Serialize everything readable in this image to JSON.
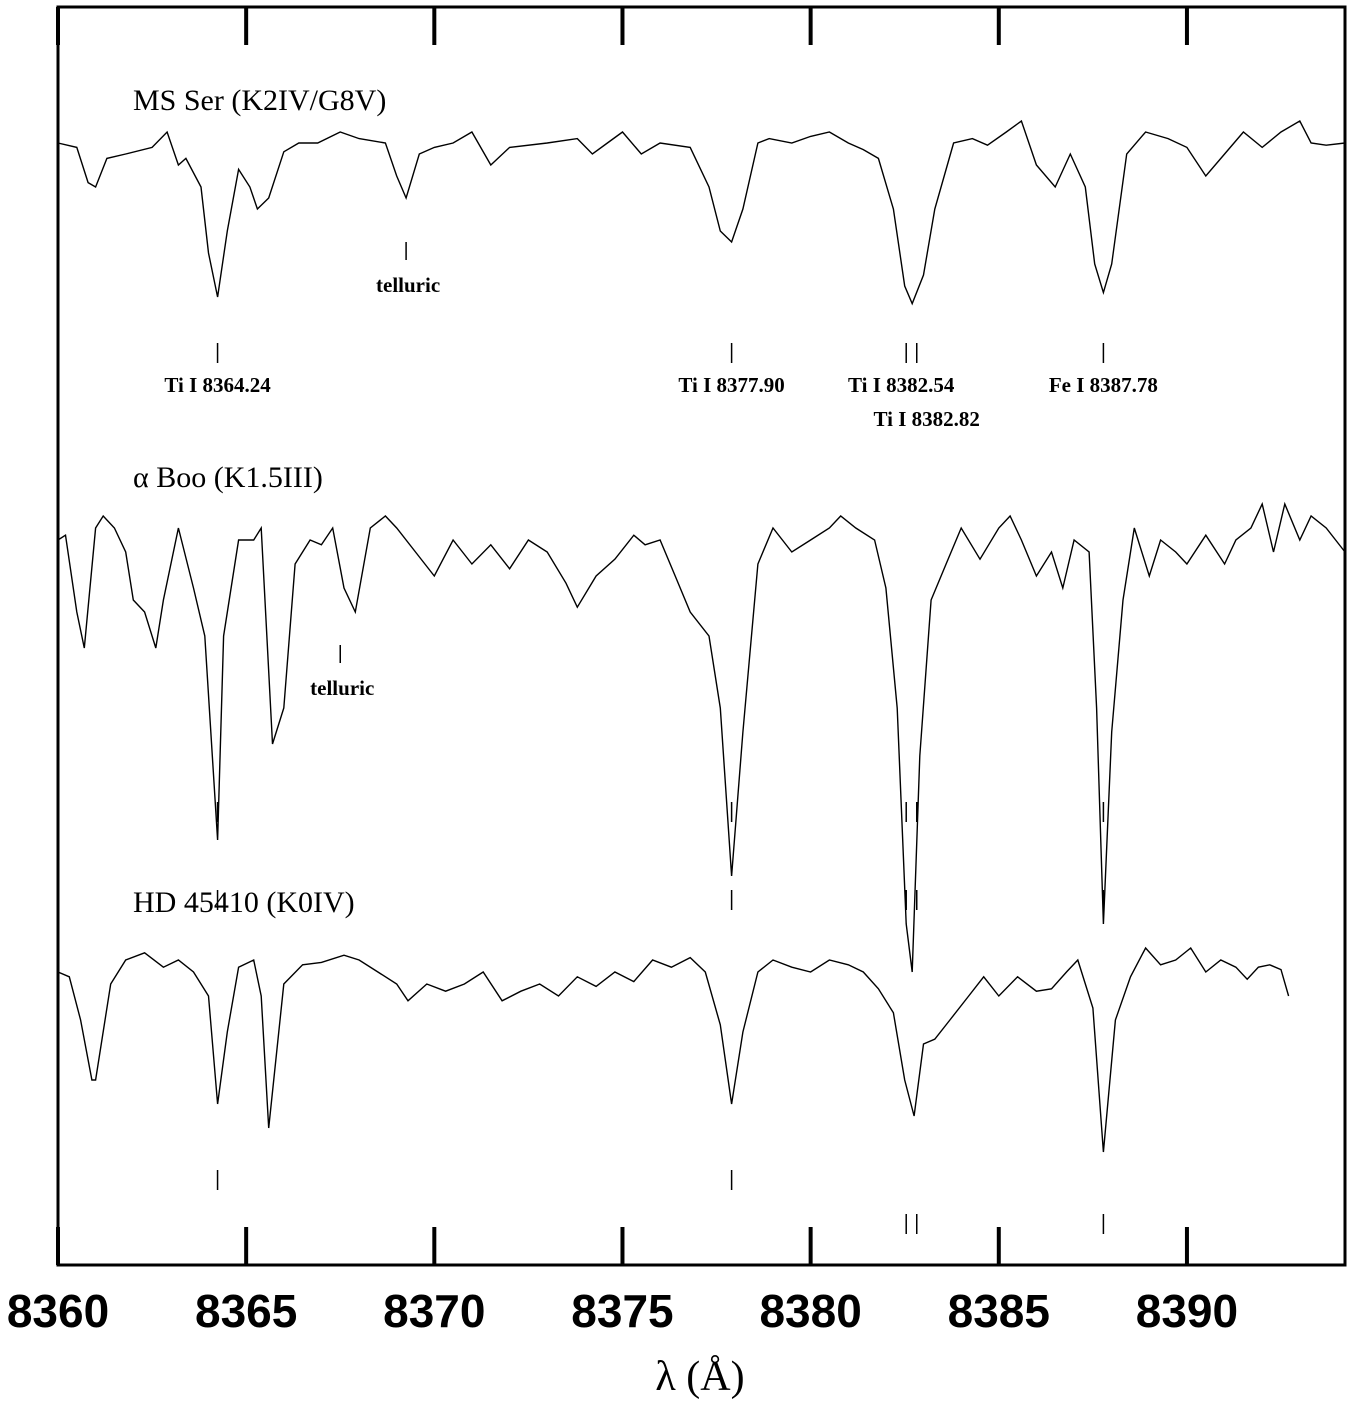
{
  "chart_data": {
    "type": "line",
    "title": "",
    "xlabel": "λ (Å)",
    "ylabel": "",
    "xlim": [
      8360,
      8394.2
    ],
    "xticks": [
      "8360",
      "8365",
      "8370",
      "8375",
      "8380",
      "8385",
      "8390"
    ],
    "grid": false,
    "series": [
      {
        "name": "MS Ser (K2IV/G8V)",
        "x": [
          8360,
          8360.5,
          8360.8,
          8361.0,
          8361.3,
          8361.8,
          8362.5,
          8362.9,
          8363.2,
          8363.4,
          8363.8,
          8364.0,
          8364.24,
          8364.5,
          8364.8,
          8365.1,
          8365.3,
          8365.6,
          8366.0,
          8366.4,
          8366.9,
          8367.5,
          8368.0,
          8368.7,
          8369.0,
          8369.25,
          8369.6,
          8370.0,
          8370.5,
          8371.0,
          8371.5,
          8372.0,
          8373.0,
          8373.8,
          8374.2,
          8374.6,
          8375.0,
          8375.5,
          8376.0,
          8376.8,
          8377.3,
          8377.6,
          8377.9,
          8378.2,
          8378.6,
          8378.9,
          8379.5,
          8380.0,
          8380.5,
          8381.0,
          8381.4,
          8381.8,
          8382.2,
          8382.5,
          8382.7,
          8383.0,
          8383.3,
          8383.8,
          8384.3,
          8384.7,
          8385.2,
          8385.6,
          8386.0,
          8386.5,
          8386.9,
          8387.3,
          8387.55,
          8387.78,
          8388.0,
          8388.4,
          8388.9,
          8389.5,
          8390.0,
          8390.5,
          8391.0,
          8391.5,
          8392.0,
          8392.5,
          8393.0,
          8393.3,
          8393.7,
          8394.2
        ],
        "y": [
          1.0,
          0.98,
          0.82,
          0.8,
          0.93,
          0.95,
          0.98,
          1.05,
          0.9,
          0.93,
          0.8,
          0.5,
          0.3,
          0.6,
          0.88,
          0.8,
          0.7,
          0.75,
          0.96,
          1.0,
          1.0,
          1.05,
          1.02,
          1.0,
          0.85,
          0.75,
          0.95,
          0.98,
          1.0,
          1.05,
          0.9,
          0.98,
          1.0,
          1.02,
          0.95,
          1.0,
          1.05,
          0.95,
          1.0,
          0.98,
          0.8,
          0.6,
          0.55,
          0.7,
          1.0,
          1.02,
          1.0,
          1.03,
          1.05,
          1.0,
          0.97,
          0.93,
          0.7,
          0.35,
          0.27,
          0.4,
          0.7,
          1.0,
          1.02,
          0.99,
          1.05,
          1.1,
          0.9,
          0.8,
          0.95,
          0.8,
          0.45,
          0.32,
          0.45,
          0.95,
          1.05,
          1.02,
          0.98,
          0.85,
          0.95,
          1.05,
          0.98,
          1.05,
          1.1,
          1.0,
          0.99,
          1.0
        ]
      },
      {
        "name": "α Boo (K1.5III)",
        "x": [
          8360,
          8360.2,
          8360.5,
          8360.7,
          8361.0,
          8361.2,
          8361.5,
          8361.8,
          8362.0,
          8362.3,
          8362.6,
          8362.8,
          8363.2,
          8363.6,
          8363.9,
          8364.24,
          8364.4,
          8364.8,
          8365.2,
          8365.4,
          8365.7,
          8366.0,
          8366.3,
          8366.7,
          8367.0,
          8367.3,
          8367.6,
          8367.9,
          8368.3,
          8368.7,
          8369.0,
          8369.5,
          8370.0,
          8370.5,
          8371.0,
          8371.5,
          8372.0,
          8372.5,
          8373.0,
          8373.5,
          8373.8,
          8374.3,
          8374.8,
          8375.3,
          8375.6,
          8376.0,
          8376.4,
          8376.8,
          8377.3,
          8377.6,
          8377.9,
          8378.2,
          8378.6,
          8379.0,
          8379.5,
          8380.0,
          8380.5,
          8380.8,
          8381.2,
          8381.7,
          8382.0,
          8382.3,
          8382.54,
          8382.7,
          8382.9,
          8383.2,
          8383.6,
          8384.0,
          8384.5,
          8385.0,
          8385.3,
          8385.6,
          8386.0,
          8386.4,
          8386.7,
          8387.0,
          8387.4,
          8387.6,
          8387.78,
          8388.0,
          8388.3,
          8388.6,
          8389.0,
          8389.3,
          8389.7,
          8390.0,
          8390.5,
          8391.0,
          8391.3,
          8391.7,
          8392.0,
          8392.3,
          8392.6,
          8393.0,
          8393.3,
          8393.7,
          8394.2
        ],
        "y": [
          1.0,
          1.02,
          0.7,
          0.55,
          1.05,
          1.1,
          1.05,
          0.95,
          0.75,
          0.7,
          0.55,
          0.75,
          1.05,
          0.8,
          0.6,
          -0.25,
          0.6,
          1.0,
          1.0,
          1.05,
          0.15,
          0.3,
          0.9,
          1.0,
          0.98,
          1.05,
          0.8,
          0.7,
          1.05,
          1.1,
          1.05,
          0.95,
          0.85,
          1.0,
          0.9,
          0.98,
          0.88,
          1.0,
          0.95,
          0.82,
          0.72,
          0.85,
          0.92,
          1.02,
          0.98,
          1.0,
          0.85,
          0.7,
          0.6,
          0.3,
          -0.4,
          0.2,
          0.9,
          1.05,
          0.95,
          1.0,
          1.05,
          1.1,
          1.05,
          1.0,
          0.8,
          0.3,
          -0.6,
          -0.8,
          0.1,
          0.75,
          0.9,
          1.05,
          0.92,
          1.05,
          1.1,
          1.0,
          0.85,
          0.95,
          0.8,
          1.0,
          0.95,
          0.3,
          -0.6,
          0.2,
          0.75,
          1.05,
          0.85,
          1.0,
          0.95,
          0.9,
          1.02,
          0.9,
          1.0,
          1.05,
          1.15,
          0.95,
          1.15,
          1.0,
          1.1,
          1.05,
          0.95
        ]
      },
      {
        "name": "HD 45410 (K0IV)",
        "x": [
          8360,
          8360.3,
          8360.6,
          8360.9,
          8361.0,
          8361.4,
          8361.8,
          8362.3,
          8362.8,
          8363.2,
          8363.6,
          8364.0,
          8364.24,
          8364.5,
          8364.8,
          8365.2,
          8365.4,
          8365.6,
          8366.0,
          8366.5,
          8367.0,
          8367.6,
          8368.0,
          8368.5,
          8369.0,
          8369.3,
          8369.8,
          8370.3,
          8370.8,
          8371.3,
          8371.8,
          8372.3,
          8372.8,
          8373.3,
          8373.8,
          8374.3,
          8374.8,
          8375.3,
          8375.8,
          8376.3,
          8376.8,
          8377.2,
          8377.6,
          8377.9,
          8378.2,
          8378.6,
          8379.0,
          8379.5,
          8380.0,
          8380.5,
          8381.0,
          8381.4,
          8381.8,
          8382.2,
          8382.5,
          8382.75,
          8383.0,
          8383.3,
          8383.7,
          8384.2,
          8384.6,
          8385.0,
          8385.5,
          8386.0,
          8386.4,
          8386.8,
          8387.1,
          8387.5,
          8387.78,
          8388.1,
          8388.5,
          8388.9,
          8389.3,
          8389.7,
          8390.1,
          8390.5,
          8390.9,
          8391.3,
          8391.6,
          8391.9,
          8392.2,
          8392.5,
          8392.7
        ],
        "y": [
          1.0,
          0.98,
          0.8,
          0.55,
          0.55,
          0.95,
          1.05,
          1.08,
          1.02,
          1.05,
          1.0,
          0.9,
          0.45,
          0.75,
          1.02,
          1.05,
          0.9,
          0.35,
          0.95,
          1.03,
          1.04,
          1.07,
          1.05,
          1.0,
          0.95,
          0.88,
          0.95,
          0.92,
          0.95,
          1.0,
          0.88,
          0.92,
          0.95,
          0.9,
          0.98,
          0.94,
          1.0,
          0.96,
          1.05,
          1.02,
          1.06,
          1.0,
          0.78,
          0.45,
          0.75,
          1.0,
          1.05,
          1.02,
          1.0,
          1.05,
          1.03,
          1.0,
          0.93,
          0.83,
          0.55,
          0.4,
          0.7,
          0.72,
          0.8,
          0.9,
          0.98,
          0.9,
          0.98,
          0.92,
          0.93,
          1.0,
          1.05,
          0.85,
          0.25,
          0.8,
          0.98,
          1.1,
          1.03,
          1.05,
          1.1,
          1.0,
          1.05,
          1.02,
          0.97,
          1.02,
          1.03,
          1.01,
          0.9
        ]
      }
    ]
  },
  "spectra_labels": [
    {
      "text": "MS Ser (K2IV/G8V)"
    },
    {
      "text": "α Boo (K1.5III)"
    },
    {
      "text": "HD 45410 (K0IV)"
    }
  ],
  "line_ids": [
    {
      "text": "Ti I 8364.24",
      "wavelength": 8364.24
    },
    {
      "text": "Ti I 8377.90",
      "wavelength": 8377.9
    },
    {
      "text": "Ti I 8382.54",
      "wavelength": 8382.54
    },
    {
      "text": "Ti I 8382.82",
      "wavelength": 8382.82
    },
    {
      "text": "Fe I 8387.78",
      "wavelength": 8387.78
    }
  ],
  "telluric_marks": [
    {
      "text": "telluric",
      "wavelength": 8369.25
    },
    {
      "text": "telluric",
      "wavelength": 8367.5
    }
  ]
}
